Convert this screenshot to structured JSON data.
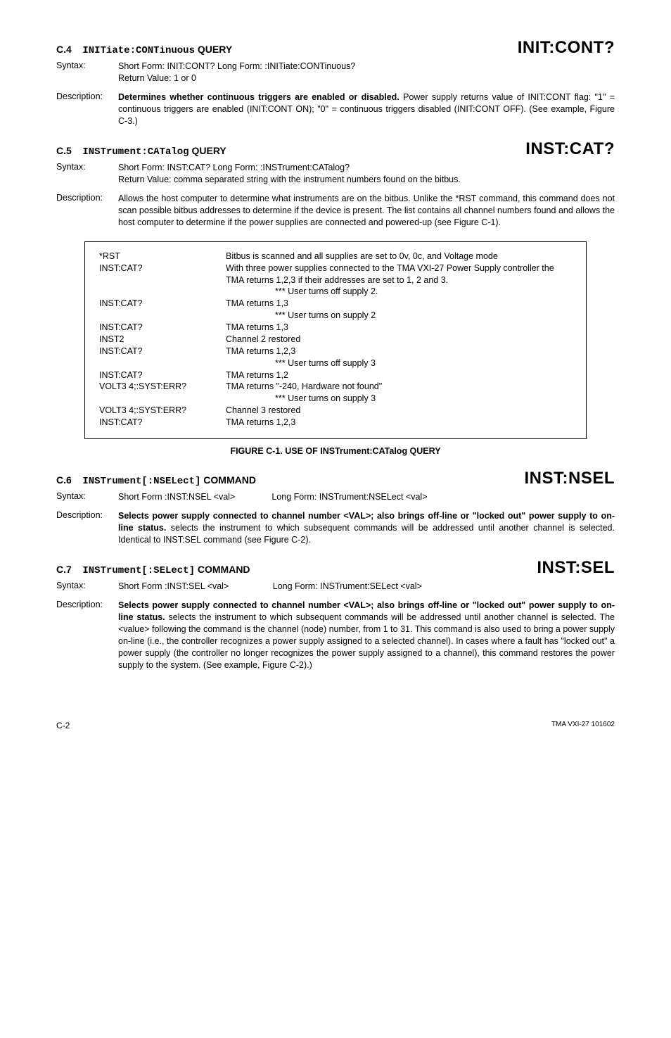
{
  "sections": {
    "c4": {
      "num": "C.4",
      "cmd": "INITiate:CONTinuous",
      "label": "QUERY",
      "keyword": "INIT:CONT?",
      "syntax_label": "Syntax:",
      "syntax_body": "Short Form: INIT:CONT?         Long Form:   :INITiate:CONTinuous?\nReturn Value: 1 or 0",
      "desc_label": "Description:",
      "desc_bold": "Determines whether continuous triggers are enabled or disabled.",
      "desc_rest": " Power supply returns value of INIT:CONT flag: \"1\" = continuous triggers are enabled (INIT:CONT ON); \"0\" = continuous triggers disabled (INIT:CONT OFF).  (See example, Figure C-3.)"
    },
    "c5": {
      "num": "C.5",
      "cmd": "INSTrument:CATalog",
      "label": "QUERY",
      "keyword": "INST:CAT?",
      "syntax_label": "Syntax:",
      "syntax_body": "Short Form: INST:CAT?         Long Form:   :INSTrument:CATalog?\nReturn Value: comma separated string with the instrument numbers found on the bitbus.",
      "desc_label": "Description:",
      "desc_rest": "Allows the host computer to determine what instruments are on the bitbus.  Unlike the *RST command, this command does not scan possible bitbus addresses to determine if the device is present. The list contains all channel numbers found and allows the host computer to determine if the power supplies are connected and powered-up (see Figure C-1)."
    },
    "c6": {
      "num": "C.6",
      "cmd": "INSTrument[:NSELect]",
      "label": "COMMAND",
      "keyword": "INST:NSEL",
      "syntax_label": "Syntax:",
      "syntax_body": "Short Form :INST:NSEL <val>               Long Form: INSTrument:NSELect <val>",
      "desc_label": "Description:",
      "desc_bold": "Selects power supply connected to channel number <VAL>; also brings off-line or \"locked out\" power supply to on-line status.",
      "desc_rest": " selects the instrument to which subsequent commands will be addressed until another channel is selected.  Identical to INST:SEL command (see Figure C-2)."
    },
    "c7": {
      "num": "C.7",
      "cmd": "INSTrument[:SELect]",
      "label": "COMMAND",
      "keyword": "INST:SEL",
      "syntax_label": "Syntax:",
      "syntax_body": "Short Form :INST:SEL <val>                  Long Form: INSTrument:SELect <val>",
      "desc_label": "Description:",
      "desc_bold": "Selects power supply connected to channel number <VAL>; also brings off-line or \"locked out\" power supply to on-line status.",
      "desc_rest": " selects the instrument to which subsequent commands will be addressed until another channel is selected. The <value> following the command is the channel (node) number, from 1 to 31. This command is also used to bring a power supply on-line (i.e., the controller recognizes a power supply assigned to a selected channel). In cases where a fault has \"locked out\" a power supply (the controller no longer recognizes the power supply assigned to a channel), this command restores the power supply to the system.  (See example, Figure C-2).)"
    }
  },
  "figure": {
    "rows": [
      {
        "l": "*RST",
        "r": "Bitbus is scanned and all supplies are set to 0v, 0c, and  Voltage mode"
      },
      {
        "l": "INST:CAT?",
        "r": "With three power supplies connected to the TMA VXI-27 Power Supply controller the TMA returns 1,2,3 if their addresses are set to 1, 2 and 3."
      },
      {
        "l": "",
        "r": "*** User turns off supply 2.",
        "indent": true
      },
      {
        "l": "INST:CAT?",
        "r": "TMA returns 1,3"
      },
      {
        "l": "",
        "r": "*** User turns on supply 2",
        "indent": true
      },
      {
        "l": "INST:CAT?",
        "r": "TMA returns 1,3"
      },
      {
        "l": "INST2",
        "r": "Channel 2 restored"
      },
      {
        "l": "INST:CAT?",
        "r": "TMA returns 1,2,3"
      },
      {
        "l": "",
        "r": "*** User turns off supply 3",
        "indent": true
      },
      {
        "l": "INST:CAT?",
        "r": "TMA returns 1,2"
      },
      {
        "l": "VOLT3 4;:SYST:ERR?",
        "r": "TMA returns \"-240, Hardware not found\""
      },
      {
        "l": "",
        "r": "*** User turns on supply 3",
        "indent": true
      },
      {
        "l": "VOLT3 4;:SYST:ERR?",
        "r": "Channel 3 restored"
      },
      {
        "l": "INST:CAT?",
        "r": "TMA returns 1,2,3"
      }
    ],
    "caption": "FIGURE C-1.    USE OF INSTrument:CATalog QUERY"
  },
  "footer": {
    "left": "C-2",
    "right": "TMA VXI-27 101602"
  }
}
